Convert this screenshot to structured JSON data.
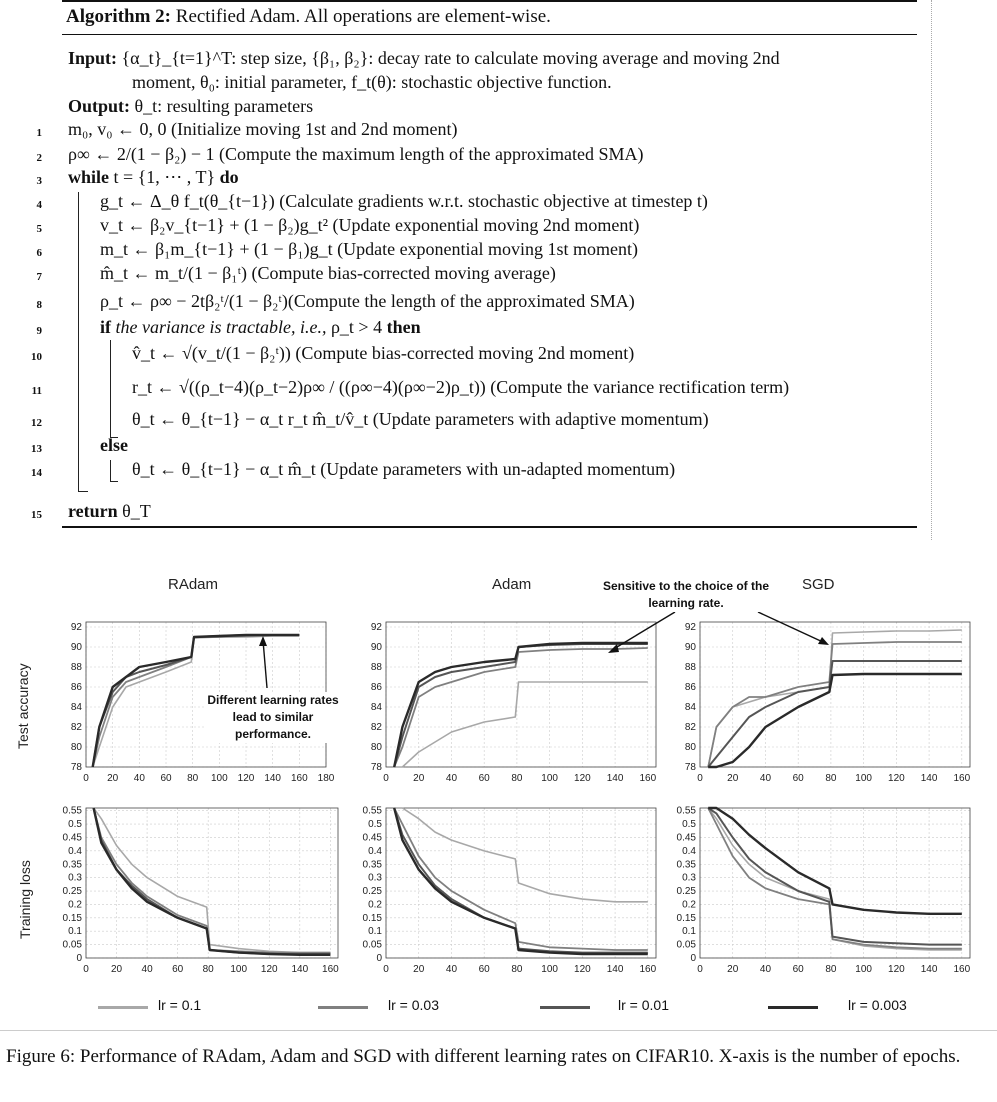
{
  "algorithm": {
    "title_bold": "Algorithm 2:",
    "title_rest": " Rectified Adam. All operations are element-wise.",
    "input_label": "Input:",
    "input_text_1": "{α_t}_{t=1}^T: step size, {β₁, β₂}: decay rate to calculate moving average and moving 2nd",
    "input_text_2": "moment, θ₀: initial parameter, f_t(θ): stochastic objective function.",
    "output_label": "Output:",
    "output_text": "θ_t: resulting parameters",
    "lines": [
      {
        "n": "1",
        "text": "m₀, v₀ ← 0, 0 (Initialize moving 1st and 2nd moment)"
      },
      {
        "n": "2",
        "text": "ρ∞ ← 2/(1 − β₂) − 1 (Compute the maximum length of the approximated SMA)"
      },
      {
        "n": "3",
        "kw": "while",
        "text": " t = {1, ⋯ , T} ",
        "kw2": "do"
      },
      {
        "n": "4",
        "text": "g_t ← Δ_θ f_t(θ_{t−1}) (Calculate gradients w.r.t. stochastic objective at timestep t)"
      },
      {
        "n": "5",
        "text": "v_t ← β₂v_{t−1} + (1 − β₂)g_t² (Update exponential moving 2nd moment)"
      },
      {
        "n": "6",
        "text": "m_t ← β₁m_{t−1} + (1 − β₁)g_t (Update exponential moving 1st moment)"
      },
      {
        "n": "7",
        "text": "m̂_t ← m_t/(1 − β₁ᵗ) (Compute bias-corrected moving average)"
      },
      {
        "n": "8",
        "text": "ρ_t ← ρ∞ − 2tβ₂ᵗ/(1 − β₂ᵗ)(Compute the length of the approximated SMA)"
      },
      {
        "n": "9",
        "kw": "if",
        "it": " the variance is tractable, i.e., ",
        "text": "ρ_t > 4 ",
        "kw2": "then"
      },
      {
        "n": "10",
        "text": "v̂_t ← √(v_t/(1 − β₂ᵗ)) (Compute bias-corrected moving 2nd moment)"
      },
      {
        "n": "11",
        "text": "r_t ← √((ρ_t−4)(ρ_t−2)ρ∞ / ((ρ∞−4)(ρ∞−2)ρ_t)) (Compute the variance rectification term)"
      },
      {
        "n": "12",
        "text": "θ_t ← θ_{t−1} − α_t r_t m̂_t/v̂_t (Update parameters with adaptive momentum)"
      },
      {
        "n": "13",
        "kw": "else",
        "text": ""
      },
      {
        "n": "14",
        "text": "θ_t ← θ_{t−1} − α_t m̂_t (Update parameters with un-adapted momentum)"
      },
      {
        "n": "15",
        "kw": "return",
        "text": " θ_T"
      }
    ]
  },
  "figure": {
    "titles": [
      "RAdam",
      "Adam",
      "SGD"
    ],
    "ylabel_top": "Test accuracy",
    "ylabel_bottom": "Training loss",
    "annotation_radam": "Different learning rates lead to similar performance.",
    "annotation_sgd": "Sensitive to the choice of the learning rate.",
    "legend": [
      {
        "label": "lr = 0.1",
        "color": "#a8a8a8"
      },
      {
        "label": "lr = 0.03",
        "color": "#808080"
      },
      {
        "label": "lr = 0.01",
        "color": "#555555"
      },
      {
        "label": "lr = 0.003",
        "color": "#2a2a2a"
      }
    ],
    "caption": "Figure 6: Performance of RAdam, Adam and SGD with different learning rates on CIFAR10. X-axis is the number of epochs."
  },
  "chart_data": [
    {
      "type": "line",
      "title": "RAdam",
      "ylabel": "Test accuracy",
      "xticks": [
        0,
        20,
        40,
        60,
        80,
        100,
        120,
        140,
        160,
        180
      ],
      "xlim": [
        0,
        180
      ],
      "yticks": [
        78,
        80,
        82,
        84,
        86,
        88,
        90,
        92
      ],
      "ylim": [
        78,
        92.5
      ],
      "x": [
        5,
        10,
        20,
        30,
        40,
        60,
        79,
        81,
        100,
        120,
        140,
        160
      ],
      "series": [
        {
          "name": "lr = 0.1",
          "values": [
            78,
            80,
            84,
            86,
            86.5,
            87.5,
            88.5,
            90.9,
            91.0,
            91.0,
            91.1,
            91.1
          ]
        },
        {
          "name": "lr = 0.03",
          "values": [
            78,
            81,
            85,
            86.5,
            87,
            88,
            89,
            91.0,
            91.0,
            91.1,
            91.2,
            91.2
          ]
        },
        {
          "name": "lr = 0.01",
          "values": [
            78,
            82,
            85.5,
            87,
            87.5,
            88.2,
            89,
            91.0,
            91.1,
            91.2,
            91.2,
            91.2
          ]
        },
        {
          "name": "lr = 0.003",
          "values": [
            78,
            82,
            86,
            87,
            88,
            88.5,
            89,
            91.0,
            91.1,
            91.2,
            91.2,
            91.2
          ]
        }
      ]
    },
    {
      "type": "line",
      "title": "Adam",
      "xticks": [
        0,
        20,
        40,
        60,
        80,
        100,
        120,
        140,
        160
      ],
      "xlim": [
        0,
        165
      ],
      "yticks": [
        78,
        80,
        82,
        84,
        86,
        88,
        90,
        92
      ],
      "ylim": [
        78,
        92.5
      ],
      "x": [
        5,
        10,
        20,
        30,
        40,
        60,
        79,
        81,
        100,
        120,
        140,
        160
      ],
      "series": [
        {
          "name": "lr = 0.1",
          "values": [
            78,
            78,
            79.5,
            80.5,
            81.5,
            82.5,
            83,
            86.5,
            86.5,
            86.5,
            86.5,
            86.5
          ]
        },
        {
          "name": "lr = 0.03",
          "values": [
            78,
            80,
            85,
            86,
            86.5,
            87.5,
            88,
            89.5,
            89.7,
            89.8,
            89.8,
            89.9
          ]
        },
        {
          "name": "lr = 0.01",
          "values": [
            78,
            81,
            86,
            87,
            87.5,
            88,
            88.5,
            90.0,
            90.2,
            90.3,
            90.3,
            90.3
          ]
        },
        {
          "name": "lr = 0.003",
          "values": [
            78,
            82,
            86.5,
            87.5,
            88,
            88.5,
            88.8,
            90.0,
            90.3,
            90.4,
            90.4,
            90.4
          ]
        }
      ]
    },
    {
      "type": "line",
      "title": "SGD",
      "xticks": [
        0,
        20,
        40,
        60,
        80,
        100,
        120,
        140,
        160
      ],
      "xlim": [
        0,
        165
      ],
      "yticks": [
        78,
        80,
        82,
        84,
        86,
        88,
        90,
        92
      ],
      "ylim": [
        78,
        92.5
      ],
      "x": [
        5,
        10,
        20,
        30,
        40,
        60,
        79,
        81,
        100,
        120,
        140,
        160
      ],
      "series": [
        {
          "name": "lr = 0.1",
          "values": [
            78,
            82,
            84,
            84.5,
            85,
            85.5,
            86,
            91.4,
            91.5,
            91.6,
            91.6,
            91.7
          ]
        },
        {
          "name": "lr = 0.03",
          "values": [
            78,
            82,
            84,
            85,
            85,
            86,
            86.5,
            90.3,
            90.4,
            90.5,
            90.5,
            90.5
          ]
        },
        {
          "name": "lr = 0.01",
          "values": [
            78,
            79,
            81,
            83,
            84,
            85.5,
            86,
            88.6,
            88.6,
            88.6,
            88.6,
            88.6
          ]
        },
        {
          "name": "lr = 0.003",
          "values": [
            78,
            78,
            78.5,
            80,
            82,
            84,
            85.5,
            87.2,
            87.3,
            87.3,
            87.3,
            87.3
          ]
        }
      ]
    },
    {
      "type": "line",
      "ylabel": "Training loss",
      "xticks": [
        0,
        20,
        40,
        60,
        80,
        100,
        120,
        140,
        160
      ],
      "xlim": [
        0,
        165
      ],
      "yticks": [
        0,
        0.05,
        0.1,
        0.15,
        0.2,
        0.25,
        0.3,
        0.35,
        0.4,
        0.45,
        0.5,
        0.55
      ],
      "ylim": [
        0,
        0.56
      ],
      "x": [
        5,
        10,
        20,
        30,
        40,
        60,
        79,
        81,
        100,
        120,
        140,
        160
      ],
      "series": [
        {
          "name": "lr = 0.1",
          "values": [
            0.56,
            0.52,
            0.42,
            0.35,
            0.3,
            0.23,
            0.19,
            0.05,
            0.035,
            0.025,
            0.02,
            0.02
          ]
        },
        {
          "name": "lr = 0.03",
          "values": [
            0.56,
            0.45,
            0.35,
            0.28,
            0.23,
            0.16,
            0.12,
            0.03,
            0.025,
            0.02,
            0.02,
            0.02
          ]
        },
        {
          "name": "lr = 0.01",
          "values": [
            0.56,
            0.44,
            0.33,
            0.27,
            0.22,
            0.15,
            0.11,
            0.03,
            0.02,
            0.015,
            0.015,
            0.015
          ]
        },
        {
          "name": "lr = 0.003",
          "values": [
            0.56,
            0.43,
            0.33,
            0.26,
            0.21,
            0.15,
            0.11,
            0.03,
            0.02,
            0.015,
            0.012,
            0.012
          ]
        }
      ]
    },
    {
      "type": "line",
      "xticks": [
        0,
        20,
        40,
        60,
        80,
        100,
        120,
        140,
        160
      ],
      "xlim": [
        0,
        165
      ],
      "yticks": [
        0,
        0.05,
        0.1,
        0.15,
        0.2,
        0.25,
        0.3,
        0.35,
        0.4,
        0.45,
        0.5,
        0.55
      ],
      "ylim": [
        0,
        0.56
      ],
      "x": [
        5,
        10,
        20,
        30,
        40,
        60,
        79,
        81,
        100,
        120,
        140,
        160
      ],
      "series": [
        {
          "name": "lr = 0.1",
          "values": [
            0.56,
            0.56,
            0.52,
            0.47,
            0.44,
            0.4,
            0.37,
            0.28,
            0.24,
            0.22,
            0.21,
            0.21
          ]
        },
        {
          "name": "lr = 0.03",
          "values": [
            0.56,
            0.5,
            0.38,
            0.3,
            0.25,
            0.18,
            0.13,
            0.06,
            0.04,
            0.035,
            0.03,
            0.03
          ]
        },
        {
          "name": "lr = 0.01",
          "values": [
            0.56,
            0.46,
            0.35,
            0.27,
            0.22,
            0.15,
            0.11,
            0.035,
            0.025,
            0.02,
            0.02,
            0.02
          ]
        },
        {
          "name": "lr = 0.003",
          "values": [
            0.56,
            0.44,
            0.33,
            0.26,
            0.21,
            0.15,
            0.11,
            0.03,
            0.02,
            0.015,
            0.015,
            0.015
          ]
        }
      ]
    },
    {
      "type": "line",
      "xticks": [
        0,
        20,
        40,
        60,
        80,
        100,
        120,
        140,
        160
      ],
      "xlim": [
        0,
        165
      ],
      "yticks": [
        0,
        0.05,
        0.1,
        0.15,
        0.2,
        0.25,
        0.3,
        0.35,
        0.4,
        0.45,
        0.5,
        0.55
      ],
      "ylim": [
        0,
        0.56
      ],
      "x": [
        5,
        10,
        20,
        30,
        40,
        60,
        79,
        81,
        100,
        120,
        140,
        160
      ],
      "series": [
        {
          "name": "lr = 0.1",
          "values": [
            0.56,
            0.52,
            0.42,
            0.35,
            0.3,
            0.25,
            0.22,
            0.07,
            0.045,
            0.035,
            0.03,
            0.03
          ]
        },
        {
          "name": "lr = 0.03",
          "values": [
            0.56,
            0.5,
            0.38,
            0.3,
            0.26,
            0.22,
            0.2,
            0.07,
            0.05,
            0.04,
            0.035,
            0.035
          ]
        },
        {
          "name": "lr = 0.01",
          "values": [
            0.56,
            0.54,
            0.45,
            0.37,
            0.32,
            0.25,
            0.21,
            0.08,
            0.06,
            0.055,
            0.05,
            0.05
          ]
        },
        {
          "name": "lr = 0.003",
          "values": [
            0.56,
            0.56,
            0.52,
            0.46,
            0.41,
            0.32,
            0.26,
            0.2,
            0.18,
            0.17,
            0.165,
            0.165
          ]
        }
      ]
    }
  ]
}
